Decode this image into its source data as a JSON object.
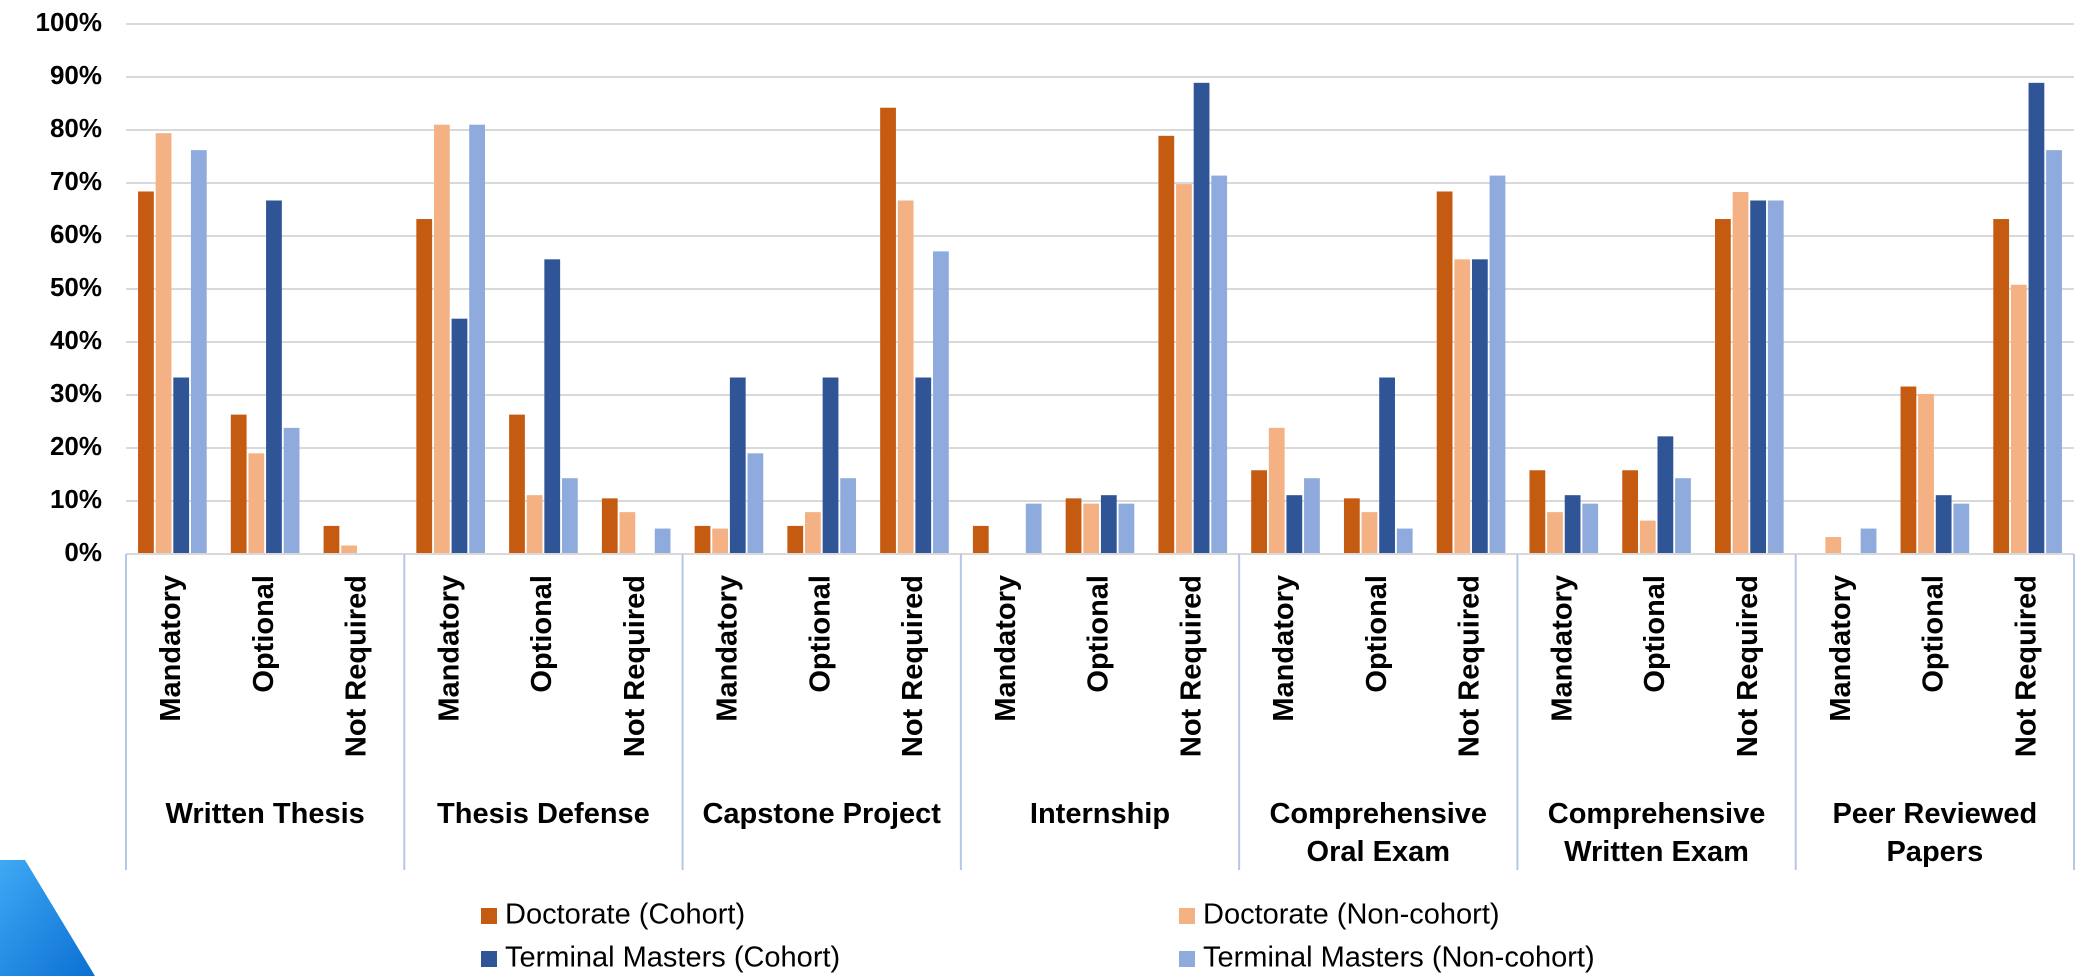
{
  "chart_data": {
    "type": "bar",
    "groups": [
      "Written Thesis",
      "Thesis Defense",
      "Capstone Project",
      "Internship",
      "Comprehensive Oral Exam",
      "Comprehensive Written Exam",
      "Peer Reviewed Papers"
    ],
    "categories": [
      "Mandatory",
      "Optional",
      "Not Required",
      "Mandatory",
      "Optional",
      "Not Required",
      "Mandatory",
      "Optional",
      "Not Required",
      "Mandatory",
      "Optional",
      "Not Required",
      "Mandatory",
      "Optional",
      "Not Required",
      "Mandatory",
      "Optional",
      "Not Required",
      "Mandatory",
      "Optional",
      "Not Required"
    ],
    "series": [
      {
        "name": "Doctorate (Cohort)",
        "color": "#c55a11",
        "values": [
          68.4,
          26.3,
          5.3,
          63.2,
          26.3,
          10.5,
          5.3,
          5.3,
          84.2,
          5.3,
          10.5,
          78.9,
          15.8,
          10.5,
          68.4,
          15.8,
          15.8,
          63.2,
          0,
          31.6,
          63.2
        ]
      },
      {
        "name": "Doctorate (Non-cohort)",
        "color": "#f4b183",
        "values": [
          79.4,
          19,
          1.6,
          81,
          11.1,
          7.9,
          4.8,
          7.9,
          66.7,
          0,
          9.5,
          69.8,
          23.8,
          7.9,
          55.6,
          7.9,
          6.3,
          68.3,
          3.2,
          30.2,
          50.8
        ]
      },
      {
        "name": "Terminal Masters (Cohort)",
        "color": "#2f5597",
        "values": [
          33.3,
          66.7,
          0,
          44.4,
          55.6,
          0,
          33.3,
          33.3,
          33.3,
          0,
          11.1,
          88.9,
          11.1,
          33.3,
          55.6,
          11.1,
          22.2,
          66.7,
          0,
          11.1,
          88.9
        ]
      },
      {
        "name": "Terminal Masters (Non-cohort)",
        "color": "#8faadc",
        "values": [
          76.2,
          23.8,
          0,
          81,
          14.3,
          4.8,
          19,
          14.3,
          57.1,
          9.5,
          9.5,
          71.4,
          14.3,
          4.8,
          71.4,
          9.5,
          14.3,
          66.7,
          4.8,
          9.5,
          76.2
        ]
      }
    ],
    "ylim": [
      0,
      100
    ],
    "yticks": [
      {
        "value": 0,
        "label": "0%"
      },
      {
        "value": 10,
        "label": "10%"
      },
      {
        "value": 20,
        "label": "20%"
      },
      {
        "value": 30,
        "label": "30%"
      },
      {
        "value": 40,
        "label": "40%"
      },
      {
        "value": 50,
        "label": "50%"
      },
      {
        "value": 60,
        "label": "60%"
      },
      {
        "value": 70,
        "label": "70%"
      },
      {
        "value": 80,
        "label": "80%"
      },
      {
        "value": 90,
        "label": "90%"
      },
      {
        "value": 100,
        "label": "100%"
      }
    ],
    "grid": true
  }
}
